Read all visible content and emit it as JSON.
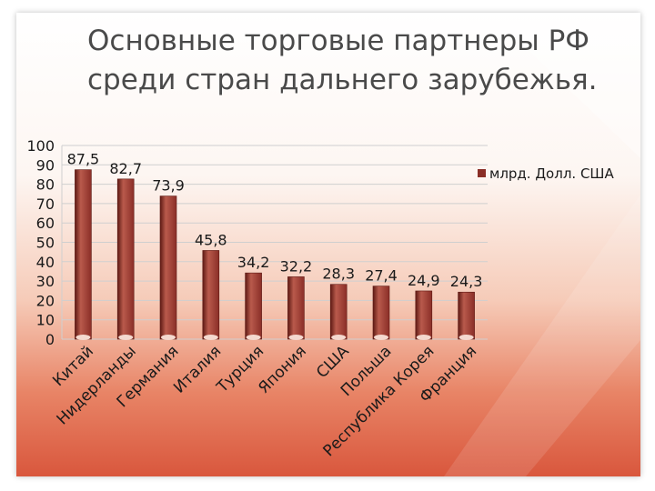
{
  "title_lines": [
    "Основные торговые партнеры РФ",
    "среди стран дальнего зарубежья."
  ],
  "colors": {
    "bar": "#8a2e27",
    "bar_light": "#b95a4c",
    "bar_dark": "#5e1a14",
    "grid": "#cfcfcf",
    "text": "#1a1a1a",
    "title": "#4a4a4a"
  },
  "chart_data": {
    "type": "bar",
    "title": "",
    "xlabel": "",
    "ylabel": "",
    "ylim": [
      0,
      100
    ],
    "yticks": [
      0,
      10,
      20,
      30,
      40,
      50,
      60,
      70,
      80,
      90,
      100
    ],
    "grid": true,
    "legend_position": "right",
    "categories": [
      "Китай",
      "Нидерланды",
      "Германия",
      "Италия",
      "Турция",
      "Япония",
      "США",
      "Польша",
      "Республика Корея",
      "Франция"
    ],
    "series": [
      {
        "name": "млрд. Долл. США",
        "values": [
          87.5,
          82.7,
          73.9,
          45.8,
          34.2,
          32.2,
          28.3,
          27.4,
          24.9,
          24.3
        ],
        "labels": [
          "87,5",
          "82,7",
          "73,9",
          "45,8",
          "34,2",
          "32,2",
          "28,3",
          "27,4",
          "24,9",
          "24,3"
        ]
      }
    ]
  }
}
